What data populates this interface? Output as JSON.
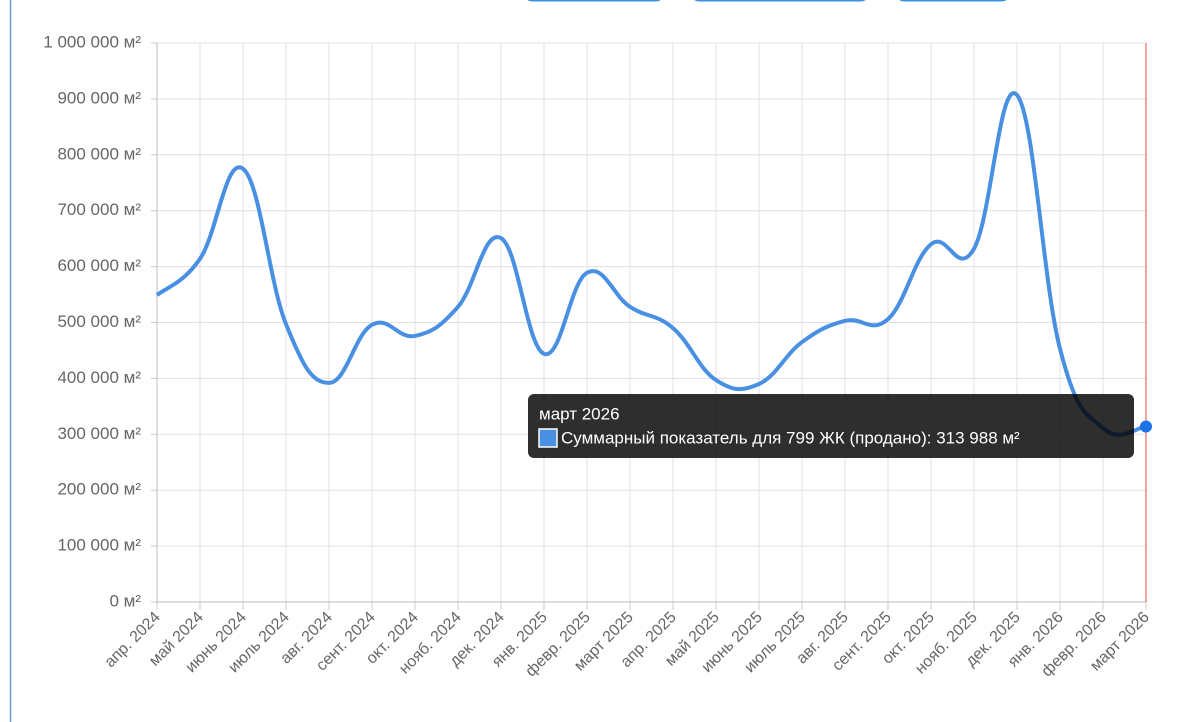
{
  "chart_data": {
    "type": "line",
    "categories": [
      "апр. 2024",
      "май 2024",
      "июнь 2024",
      "июль 2024",
      "авг. 2024",
      "сент. 2024",
      "окт. 2024",
      "нояб. 2024",
      "дек. 2024",
      "янв. 2025",
      "февр. 2025",
      "март 2025",
      "апр. 2025",
      "май 2025",
      "июнь 2025",
      "июль 2025",
      "авг. 2025",
      "сент. 2025",
      "окт. 2025",
      "нояб. 2025",
      "дек. 2025",
      "янв. 2026",
      "февр. 2026",
      "март 2026"
    ],
    "series": [
      {
        "name": "Суммарный показатель для 799 ЖК (продано)",
        "color": "#4a90e2",
        "values": [
          549000,
          614000,
          775000,
          497000,
          392000,
          496000,
          476000,
          528000,
          651000,
          444000,
          589000,
          528000,
          490000,
          397000,
          390000,
          465000,
          503000,
          506000,
          640000,
          632000,
          907000,
          453000,
          311000,
          313988
        ]
      }
    ],
    "ylim": [
      0,
      1000000
    ],
    "yticks": [
      {
        "value": 0,
        "label": "0 м²"
      },
      {
        "value": 100000,
        "label": "100 000 м²"
      },
      {
        "value": 200000,
        "label": "200 000 м²"
      },
      {
        "value": 300000,
        "label": "300 000 м²"
      },
      {
        "value": 400000,
        "label": "400 000 м²"
      },
      {
        "value": 500000,
        "label": "500 000 м²"
      },
      {
        "value": 600000,
        "label": "600 000 м²"
      },
      {
        "value": 700000,
        "label": "700 000 м²"
      },
      {
        "value": 800000,
        "label": "800 000 м²"
      },
      {
        "value": 900000,
        "label": "900 000 м²"
      },
      {
        "value": 1000000,
        "label": "1 000 000 м²"
      }
    ],
    "grid": true,
    "tooltip": {
      "title": "март 2026",
      "label": "Суммарный показатель для 799 ЖК (продано): 313 988 м²"
    }
  }
}
